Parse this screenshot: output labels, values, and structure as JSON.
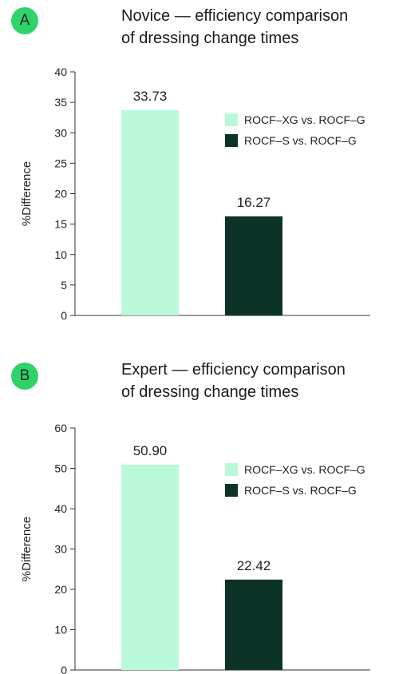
{
  "chart_data": [
    {
      "type": "bar",
      "panel_label": "A",
      "title": "Novice — efficiency comparison of dressing change times",
      "title_lines": [
        "Novice — efficiency comparison",
        "of dressing change times"
      ],
      "ylabel": "%Difference",
      "ylim": [
        0,
        40
      ],
      "yticks": [
        0,
        5,
        10,
        15,
        20,
        25,
        30,
        35,
        40
      ],
      "series": [
        {
          "name": "ROCF–XG vs. ROCF–G",
          "values": [
            33.73
          ],
          "label": "33.73",
          "color": "#b9f8d8"
        },
        {
          "name": "ROCF–S vs. ROCF–G",
          "values": [
            16.27
          ],
          "label": "16.27",
          "color": "#0d3329"
        }
      ],
      "legend_position": "right",
      "grid": false
    },
    {
      "type": "bar",
      "panel_label": "B",
      "title": "Expert — efficiency comparison of dressing change times",
      "title_lines": [
        "Expert — efficiency comparison",
        "of dressing change times"
      ],
      "ylabel": "%Difference",
      "ylim": [
        0,
        60
      ],
      "yticks": [
        0,
        10,
        20,
        30,
        40,
        50,
        60
      ],
      "series": [
        {
          "name": "ROCF–XG vs. ROCF–G",
          "values": [
            50.9
          ],
          "label": "50.90",
          "color": "#b9f8d8"
        },
        {
          "name": "ROCF–S vs. ROCF–G",
          "values": [
            22.42
          ],
          "label": "22.42",
          "color": "#0d3329"
        }
      ],
      "legend_position": "right",
      "grid": false
    }
  ]
}
